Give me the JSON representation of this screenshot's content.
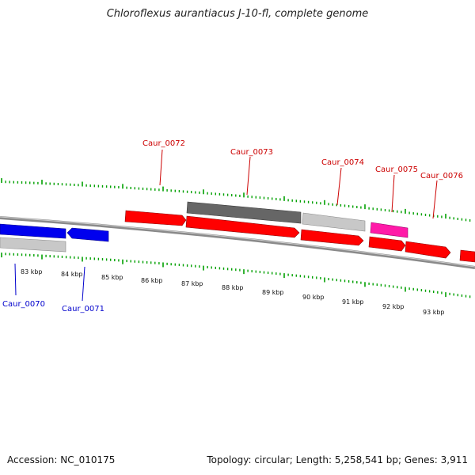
{
  "title": "Chloroflexus aurantiacus J-10-fl, complete genome",
  "footer": {
    "accession": "Accession: NC_010175",
    "summary": "Topology: circular; Length: 5,258,541 bp; Genes: 3,911"
  },
  "colors": {
    "forward_gene": "#ff0000",
    "reverse_gene": "#0000ff",
    "rna": "#ff00aa",
    "unannotated_dark": "#666666",
    "unannotated_light": "#c8c8c8",
    "backbone": "#8a8a8a",
    "ticks": "#00a000",
    "forward_label": "#cc0000",
    "reverse_label": "#0000cc"
  },
  "scale_labels": [
    "83 kbp",
    "84 kbp",
    "85 kbp",
    "86 kbp",
    "87 kbp",
    "88 kbp",
    "89 kbp",
    "90 kbp",
    "91 kbp",
    "92 kbp",
    "93 kbp"
  ],
  "gene_labels": [
    "Caur_0070",
    "Caur_0071",
    "Caur_0072",
    "Caur_0073",
    "Caur_0074",
    "Caur_0075",
    "Caur_0076"
  ]
}
